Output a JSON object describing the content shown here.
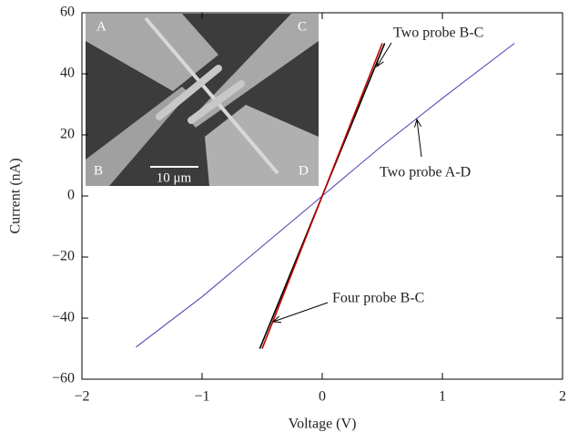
{
  "chart_data": {
    "type": "line",
    "xlabel": "Voltage (V)",
    "ylabel": "Current (nA)",
    "xlim": [
      -2,
      2
    ],
    "ylim": [
      -60,
      60
    ],
    "xticks": [
      {
        "value": -2,
        "label": "−2"
      },
      {
        "value": -1,
        "label": "−1"
      },
      0,
      1,
      2
    ],
    "yticks": [
      {
        "value": -60,
        "label": "−60"
      },
      {
        "value": -40,
        "label": "−40"
      },
      {
        "value": -20,
        "label": "−20"
      },
      0,
      20,
      40,
      60
    ],
    "series": [
      {
        "name": "Two probe A-D",
        "color": "#4a3fb0",
        "x": [
          -1.55,
          -1,
          -0.5,
          0,
          0.5,
          1,
          1.6
        ],
        "values": [
          -49.5,
          -33,
          -16.5,
          0,
          16.5,
          32,
          50
        ]
      },
      {
        "name": "Two probe B-C",
        "color": "#000000",
        "x": [
          -0.52,
          0,
          0.52
        ],
        "values": [
          -50,
          0,
          50
        ]
      },
      {
        "name": "Four probe B-C",
        "color": "#c00000",
        "x": [
          -0.5,
          0,
          0.5
        ],
        "values": [
          -50,
          0,
          50
        ]
      }
    ],
    "inset": {
      "labels": [
        "A",
        "B",
        "C",
        "D"
      ],
      "scale_bar": "10 μm"
    }
  }
}
